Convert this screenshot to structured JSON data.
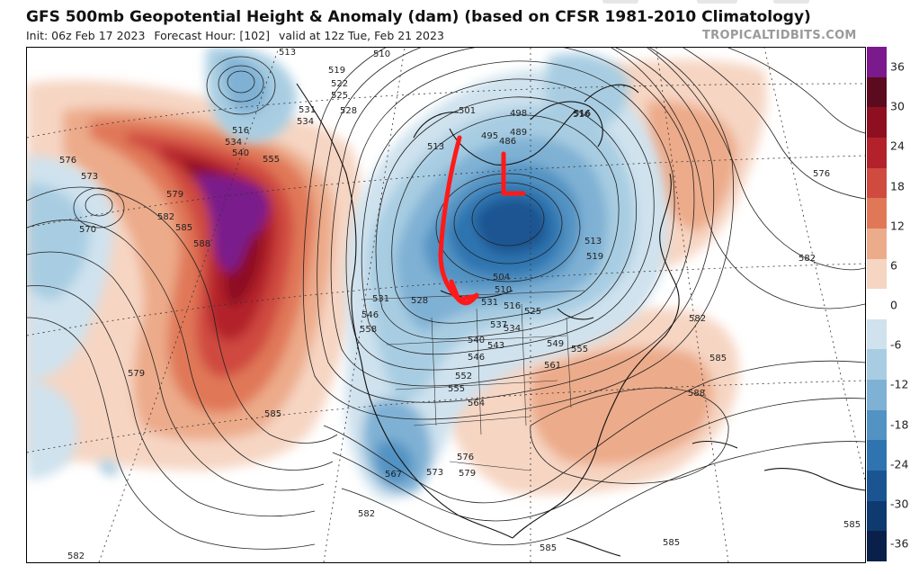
{
  "header": {
    "title": "GFS 500mb Geopotential Height & Anomaly (dam) (based on CFSR 1981-2010 Climatology)",
    "init": "Init: 06z Feb 17 2023",
    "forecast_hour": "Forecast Hour: [102]",
    "valid": "valid at 12z Tue, Feb 21 2023",
    "source": "TROPICALTIDBITS.COM"
  },
  "colorbar": {
    "labels": [
      "36",
      "30",
      "24",
      "18",
      "12",
      "6",
      "0",
      "-6",
      "-12",
      "-18",
      "-24",
      "-30",
      "-36"
    ],
    "colors": [
      "#7a1a8c",
      "#5c0a1e",
      "#8e1020",
      "#b3222b",
      "#cf4a3f",
      "#e07858",
      "#ecab8a",
      "#f6d5c3",
      "#ffffff",
      "#cfe2ee",
      "#a8cde2",
      "#7fb1d4",
      "#5293c3",
      "#2f74b0",
      "#1a5592",
      "#0f3a6f",
      "#08204a"
    ]
  },
  "contours": {
    "labels": [
      "513",
      "519",
      "522",
      "525",
      "528",
      "516",
      "531",
      "534",
      "537",
      "540",
      "546",
      "552",
      "555",
      "558",
      "561",
      "564",
      "567",
      "570",
      "573",
      "576",
      "579",
      "582",
      "585",
      "588",
      "510",
      "501",
      "498",
      "489",
      "495",
      "486",
      "504",
      "543",
      "549"
    ]
  },
  "annotation": {
    "color": "#ff1a1a",
    "letter": "L"
  }
}
